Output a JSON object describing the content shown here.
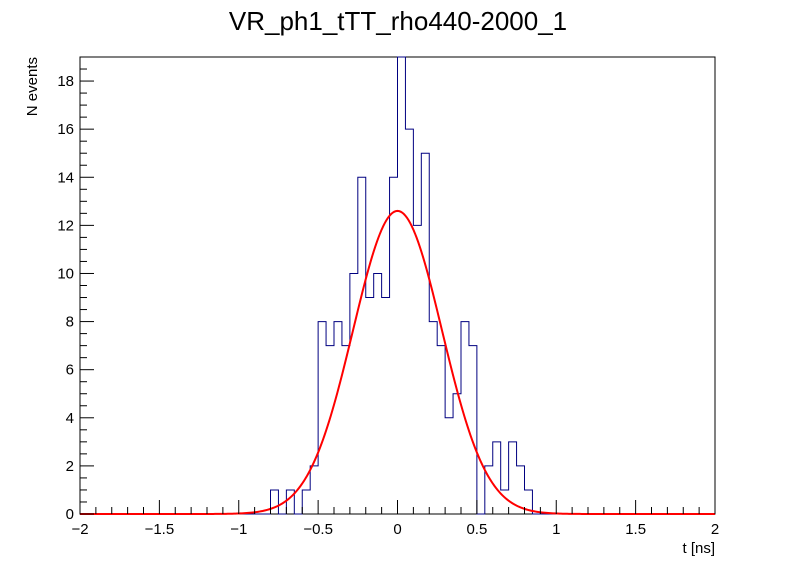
{
  "chart_data": {
    "type": "histogram",
    "title": "VR_ph1_tTT_rho440-2000_1",
    "xlabel": "t [ns]",
    "ylabel": "N events",
    "xlim": [
      -2,
      2
    ],
    "ylim": [
      0,
      19
    ],
    "x_ticks": [
      -2,
      -1.5,
      -1,
      -0.5,
      0,
      0.5,
      1,
      1.5,
      2
    ],
    "x_tick_labels": [
      "−2",
      "−1.5",
      "−1",
      "−0.5",
      "0",
      "0.5",
      "1",
      "1.5",
      "2"
    ],
    "y_ticks": [
      0,
      2,
      4,
      6,
      8,
      10,
      12,
      14,
      16,
      18
    ],
    "y_tick_labels": [
      "0",
      "2",
      "4",
      "6",
      "8",
      "10",
      "12",
      "14",
      "16",
      "18"
    ],
    "grid": false,
    "legend": "none",
    "histogram": {
      "bin_width": 0.05,
      "bin_start": -2,
      "color": "#000080",
      "counts": [
        0,
        0,
        0,
        0,
        0,
        0,
        0,
        0,
        0,
        0,
        0,
        0,
        0,
        0,
        0,
        0,
        0,
        0,
        0,
        0,
        0,
        0,
        0,
        0,
        1,
        0,
        1,
        0,
        1,
        2,
        8,
        7,
        8,
        7,
        10,
        14,
        9,
        10,
        9,
        14,
        19,
        16,
        12,
        15,
        8,
        7,
        4,
        5,
        8,
        7,
        0,
        2,
        3,
        1,
        3,
        2,
        1,
        0,
        0,
        0,
        0,
        0,
        0,
        0,
        0,
        0,
        0,
        0,
        0,
        0,
        0,
        0,
        0,
        0,
        0,
        0,
        0,
        0,
        0,
        0
      ]
    },
    "fit": {
      "type": "gaussian",
      "amplitude": 12.6,
      "mean": 0.0,
      "sigma": 0.28,
      "color": "#ff0000"
    }
  }
}
